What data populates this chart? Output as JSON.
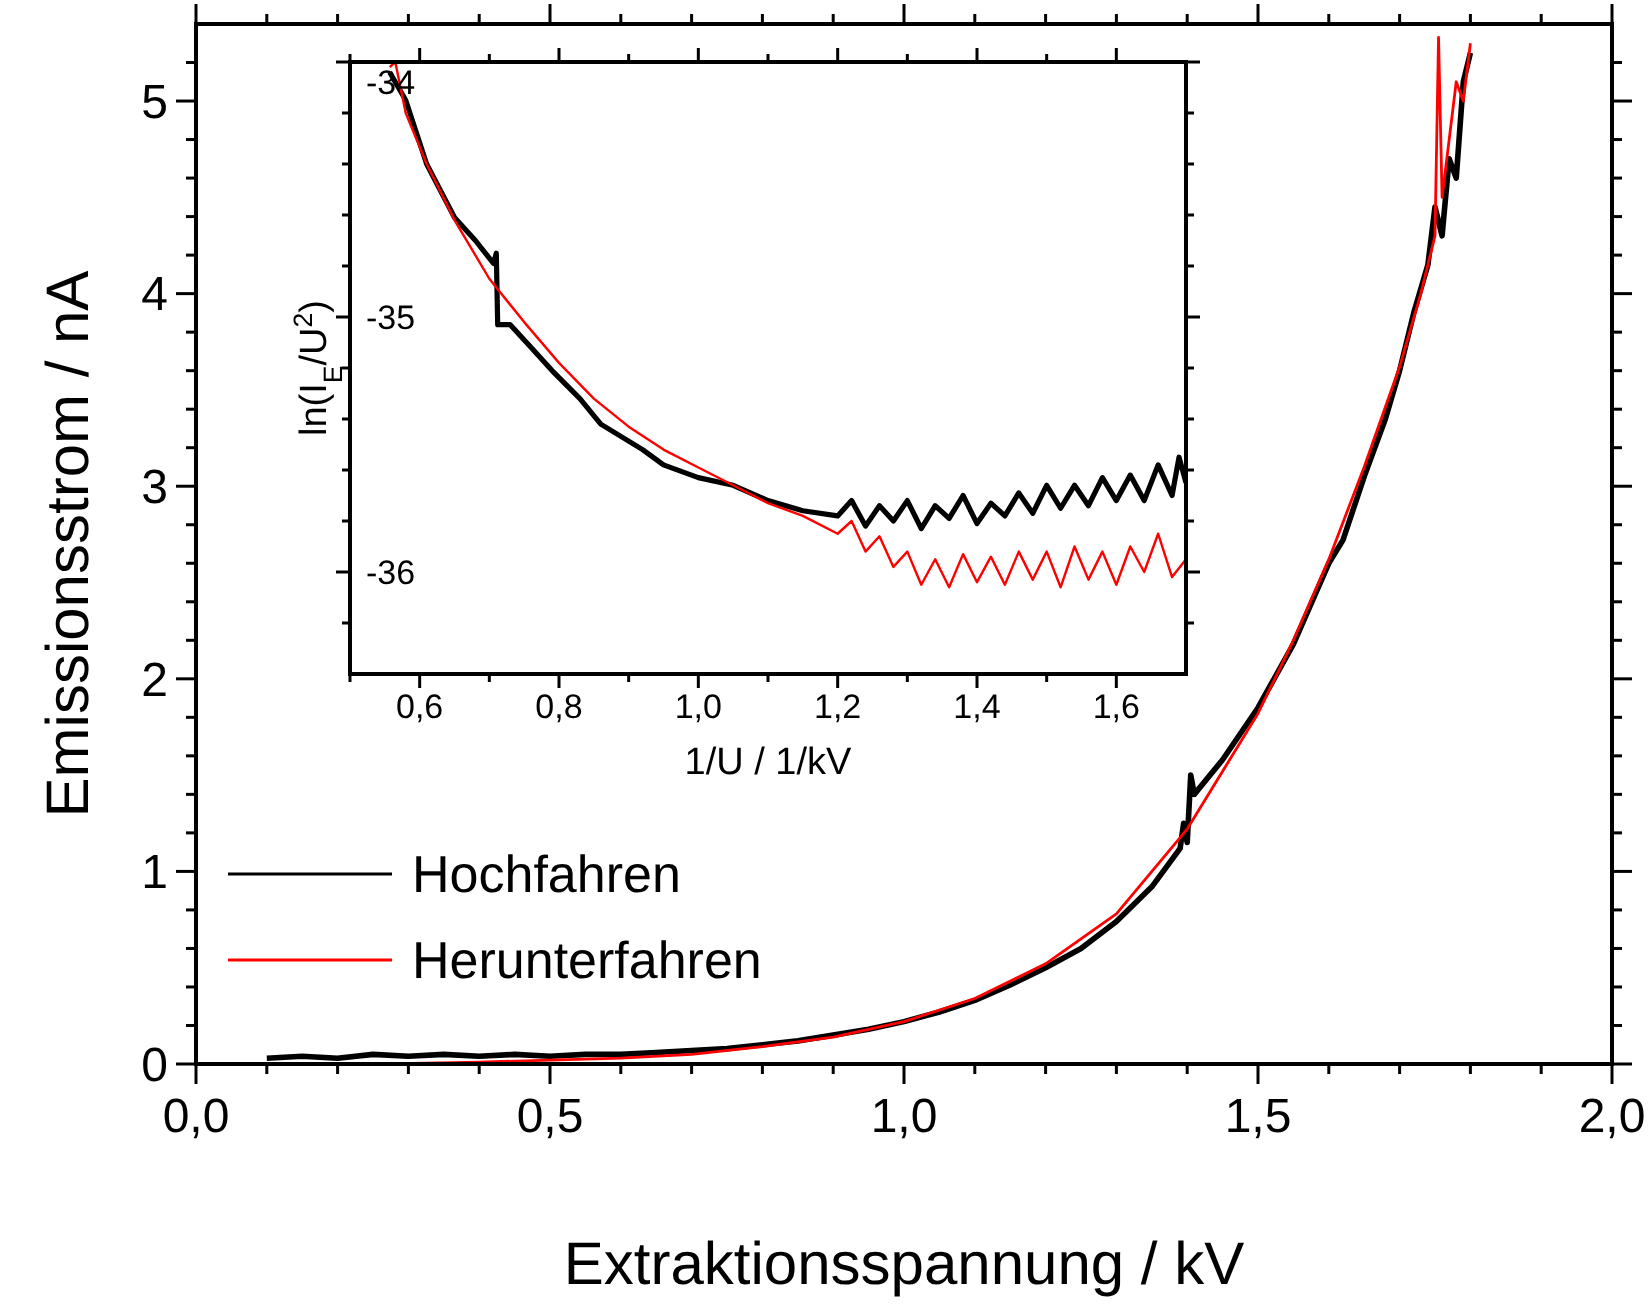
{
  "chart_data": [
    {
      "type": "line",
      "xlabel": "Extraktionsspannung / kV",
      "ylabel": "Emissionsstrom / nA",
      "xlim": [
        0,
        2
      ],
      "ylim": [
        0,
        5.4
      ],
      "xticks": [
        {
          "value": 0,
          "label": "0,0"
        },
        {
          "value": 0.1,
          "label": null
        },
        {
          "value": 0.2,
          "label": null
        },
        {
          "value": 0.3,
          "label": null
        },
        {
          "value": 0.4,
          "label": null
        },
        {
          "value": 0.5,
          "label": "0,5"
        },
        {
          "value": 0.6,
          "label": null
        },
        {
          "value": 0.7,
          "label": null
        },
        {
          "value": 0.8,
          "label": null
        },
        {
          "value": 0.9,
          "label": null
        },
        {
          "value": 1,
          "label": "1,0"
        },
        {
          "value": 1.1,
          "label": null
        },
        {
          "value": 1.2,
          "label": null
        },
        {
          "value": 1.3,
          "label": null
        },
        {
          "value": 1.4,
          "label": null
        },
        {
          "value": 1.5,
          "label": "1,5"
        },
        {
          "value": 1.6,
          "label": null
        },
        {
          "value": 1.7,
          "label": null
        },
        {
          "value": 1.8,
          "label": null
        },
        {
          "value": 1.9,
          "label": null
        },
        {
          "value": 2,
          "label": "2,0"
        }
      ],
      "yticks": [
        0,
        {
          "value": 0.2,
          "label": null
        },
        {
          "value": 0.4,
          "label": null
        },
        {
          "value": 0.6,
          "label": null
        },
        {
          "value": 0.8,
          "label": null
        },
        1,
        {
          "value": 1.2,
          "label": null
        },
        {
          "value": 1.4,
          "label": null
        },
        {
          "value": 1.6,
          "label": null
        },
        {
          "value": 1.8,
          "label": null
        },
        2,
        {
          "value": 2.2,
          "label": null
        },
        {
          "value": 2.4,
          "label": null
        },
        {
          "value": 2.6,
          "label": null
        },
        {
          "value": 2.8,
          "label": null
        },
        3,
        {
          "value": 3.2,
          "label": null
        },
        {
          "value": 3.4,
          "label": null
        },
        {
          "value": 3.6,
          "label": null
        },
        {
          "value": 3.8,
          "label": null
        },
        4,
        {
          "value": 4.2,
          "label": null
        },
        {
          "value": 4.4,
          "label": null
        },
        {
          "value": 4.6,
          "label": null
        },
        {
          "value": 4.8,
          "label": null
        },
        5,
        {
          "value": 5.2,
          "label": null
        }
      ],
      "grid": false,
      "legend": "bottom left",
      "marker": "none",
      "line_style": "solid",
      "series": [
        {
          "name": "Hochfahren",
          "color": "#000000",
          "x": [
            0.1,
            0.15,
            0.2,
            0.25,
            0.3,
            0.35,
            0.4,
            0.45,
            0.5,
            0.55,
            0.6,
            0.65,
            0.7,
            0.75,
            0.8,
            0.85,
            0.9,
            0.95,
            1.0,
            1.05,
            1.1,
            1.15,
            1.2,
            1.25,
            1.3,
            1.35,
            1.39,
            1.395,
            1.4,
            1.405,
            1.41,
            1.45,
            1.5,
            1.55,
            1.6,
            1.62,
            1.65,
            1.68,
            1.7,
            1.72,
            1.74,
            1.75,
            1.76,
            1.77,
            1.78,
            1.79,
            1.8
          ],
          "values": [
            0.03,
            0.04,
            0.03,
            0.05,
            0.04,
            0.05,
            0.04,
            0.05,
            0.04,
            0.05,
            0.05,
            0.06,
            0.07,
            0.08,
            0.1,
            0.12,
            0.15,
            0.18,
            0.22,
            0.27,
            0.33,
            0.41,
            0.5,
            0.6,
            0.74,
            0.92,
            1.12,
            1.25,
            1.15,
            1.5,
            1.4,
            1.58,
            1.85,
            2.18,
            2.6,
            2.72,
            3.05,
            3.35,
            3.6,
            3.9,
            4.15,
            4.45,
            4.3,
            4.7,
            4.6,
            5.1,
            5.25
          ]
        },
        {
          "name": "Herunterfahren",
          "color": "#ff0000",
          "x": [
            0.27,
            0.4,
            0.5,
            0.6,
            0.7,
            0.8,
            0.9,
            1.0,
            1.1,
            1.2,
            1.3,
            1.4,
            1.45,
            1.5,
            1.55,
            1.6,
            1.65,
            1.7,
            1.73,
            1.75,
            1.755,
            1.76,
            1.77,
            1.78,
            1.79,
            1.8
          ],
          "values": [
            0.0,
            0.01,
            0.02,
            0.03,
            0.05,
            0.09,
            0.14,
            0.22,
            0.34,
            0.52,
            0.78,
            1.22,
            1.52,
            1.82,
            2.2,
            2.62,
            3.1,
            3.62,
            4.0,
            4.3,
            5.33,
            4.5,
            4.8,
            5.1,
            5.0,
            5.3
          ]
        }
      ]
    },
    {
      "type": "line",
      "xlabel": "1/U / 1/kV",
      "ylabel": "ln(I$_{E}$/U$^{2}$)",
      "xlim": [
        0.5,
        1.7
      ],
      "ylim": [
        -36.4,
        -34
      ],
      "xticks": [
        {
          "value": 0.5,
          "label": null
        },
        {
          "value": 0.6,
          "label": "0,6"
        },
        {
          "value": 0.7,
          "label": null
        },
        {
          "value": 0.8,
          "label": "0,8"
        },
        {
          "value": 0.9,
          "label": null
        },
        {
          "value": 1,
          "label": "1,0"
        },
        {
          "value": 1.1,
          "label": null
        },
        {
          "value": 1.2,
          "label": "1,2"
        },
        {
          "value": 1.3,
          "label": null
        },
        {
          "value": 1.4,
          "label": "1,4"
        },
        {
          "value": 1.5,
          "label": null
        },
        {
          "value": 1.6,
          "label": "1,6"
        }
      ],
      "yticks": [
        {
          "value": -36.2,
          "label": null
        },
        -36,
        {
          "value": -35.8,
          "label": null
        },
        {
          "value": -35.6,
          "label": null
        },
        {
          "value": -35.4,
          "label": null
        },
        {
          "value": -35.2,
          "label": null
        },
        -35,
        {
          "value": -34.8,
          "label": null
        },
        {
          "value": -34.6,
          "label": null
        },
        {
          "value": -34.4,
          "label": null
        },
        {
          "value": -34.2,
          "label": null
        },
        -34
      ],
      "grid": false,
      "marker": "none",
      "line_style": "solid",
      "series": [
        {
          "color": "#000000",
          "x": [
            0.557,
            0.58,
            0.61,
            0.65,
            0.68,
            0.706,
            0.71,
            0.712,
            0.73,
            0.76,
            0.79,
            0.83,
            0.86,
            0.89,
            0.92,
            0.95,
            1.0,
            1.05,
            1.1,
            1.15,
            1.2,
            1.22,
            1.24,
            1.26,
            1.28,
            1.3,
            1.32,
            1.34,
            1.36,
            1.38,
            1.4,
            1.42,
            1.44,
            1.46,
            1.48,
            1.5,
            1.52,
            1.54,
            1.56,
            1.58,
            1.6,
            1.62,
            1.64,
            1.66,
            1.68,
            1.69,
            1.7
          ],
          "values": [
            -34.04,
            -34.15,
            -34.4,
            -34.61,
            -34.7,
            -34.79,
            -34.75,
            -35.03,
            -35.03,
            -35.12,
            -35.21,
            -35.32,
            -35.42,
            -35.47,
            -35.52,
            -35.58,
            -35.63,
            -35.66,
            -35.72,
            -35.76,
            -35.78,
            -35.72,
            -35.82,
            -35.74,
            -35.8,
            -35.72,
            -35.83,
            -35.74,
            -35.79,
            -35.7,
            -35.81,
            -35.73,
            -35.78,
            -35.69,
            -35.77,
            -35.66,
            -35.75,
            -35.66,
            -35.74,
            -35.63,
            -35.72,
            -35.62,
            -35.72,
            -35.58,
            -35.7,
            -35.55,
            -35.65
          ]
        },
        {
          "color": "#ff0000",
          "x": [
            0.557,
            0.565,
            0.58,
            0.61,
            0.65,
            0.7,
            0.75,
            0.8,
            0.85,
            0.9,
            0.95,
            1.0,
            1.05,
            1.1,
            1.15,
            1.2,
            1.22,
            1.24,
            1.26,
            1.28,
            1.3,
            1.32,
            1.34,
            1.36,
            1.38,
            1.4,
            1.42,
            1.44,
            1.46,
            1.48,
            1.5,
            1.52,
            1.54,
            1.56,
            1.58,
            1.6,
            1.62,
            1.64,
            1.66,
            1.68,
            1.7
          ],
          "values": [
            -34.02,
            -34.0,
            -34.2,
            -34.4,
            -34.62,
            -34.85,
            -35.02,
            -35.18,
            -35.32,
            -35.43,
            -35.52,
            -35.59,
            -35.66,
            -35.73,
            -35.78,
            -35.85,
            -35.8,
            -35.92,
            -35.86,
            -35.98,
            -35.92,
            -36.05,
            -35.95,
            -36.06,
            -35.93,
            -36.04,
            -35.94,
            -36.05,
            -35.92,
            -36.03,
            -35.92,
            -36.06,
            -35.9,
            -36.03,
            -35.92,
            -36.05,
            -35.9,
            -36.0,
            -35.85,
            -36.02,
            -35.95
          ]
        }
      ]
    }
  ]
}
